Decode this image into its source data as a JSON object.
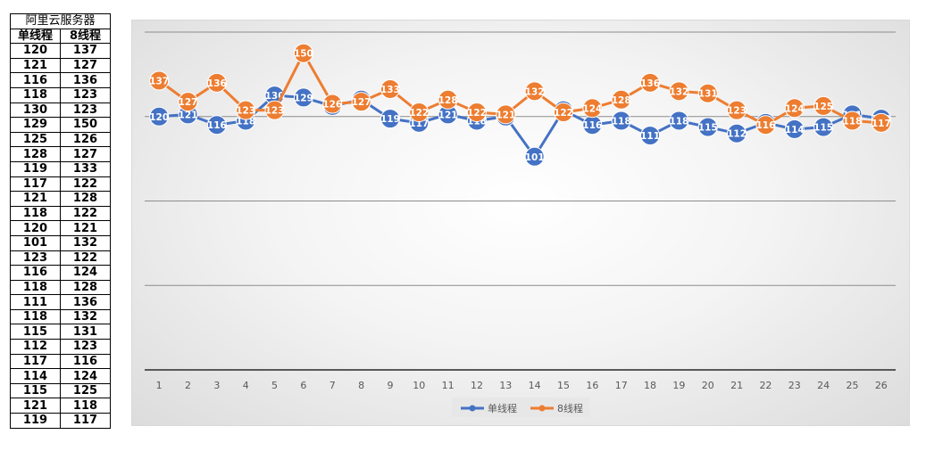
{
  "table": {
    "title": "阿里云服务器",
    "headers": [
      "单线程",
      "8线程"
    ],
    "rows": [
      [
        "120",
        "137"
      ],
      [
        "121",
        "127"
      ],
      [
        "116",
        "136"
      ],
      [
        "118",
        "123"
      ],
      [
        "130",
        "123"
      ],
      [
        "129",
        "150"
      ],
      [
        "125",
        "126"
      ],
      [
        "128",
        "127"
      ],
      [
        "119",
        "133"
      ],
      [
        "117",
        "122"
      ],
      [
        "121",
        "128"
      ],
      [
        "118",
        "122"
      ],
      [
        "120",
        "121"
      ],
      [
        "101",
        "132"
      ],
      [
        "123",
        "122"
      ],
      [
        "116",
        "124"
      ],
      [
        "118",
        "128"
      ],
      [
        "111",
        "136"
      ],
      [
        "118",
        "132"
      ],
      [
        "115",
        "131"
      ],
      [
        "112",
        "123"
      ],
      [
        "117",
        "116"
      ],
      [
        "114",
        "124"
      ],
      [
        "115",
        "125"
      ],
      [
        "121",
        "118"
      ],
      [
        "119",
        "117"
      ]
    ]
  },
  "chart_data": {
    "type": "line",
    "x": [
      1,
      2,
      3,
      4,
      5,
      6,
      7,
      8,
      9,
      10,
      11,
      12,
      13,
      14,
      15,
      16,
      17,
      18,
      19,
      20,
      21,
      22,
      23,
      24,
      25,
      26
    ],
    "series": [
      {
        "name": "单线程",
        "color": "#4472c4",
        "values": [
          120,
          121,
          116,
          118,
          130,
          129,
          125,
          128,
          119,
          117,
          121,
          118,
          120,
          101,
          123,
          116,
          118,
          111,
          118,
          115,
          112,
          117,
          114,
          115,
          121,
          119
        ]
      },
      {
        "name": "8线程",
        "color": "#ed7d31",
        "values": [
          137,
          127,
          136,
          123,
          123,
          150,
          126,
          127,
          133,
          122,
          128,
          122,
          121,
          132,
          122,
          124,
          128,
          136,
          132,
          131,
          123,
          116,
          124,
          125,
          118,
          117
        ]
      }
    ],
    "ylim": [
      0,
      160
    ],
    "grid": true,
    "legend": "bottom",
    "data_labels": true
  }
}
